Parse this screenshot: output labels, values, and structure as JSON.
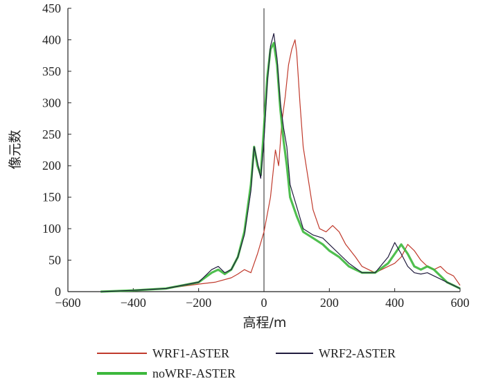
{
  "chart_data": {
    "type": "line",
    "title": "",
    "xlabel": "高程/m",
    "ylabel": "像元数",
    "xlim": [
      -600,
      600
    ],
    "ylim": [
      0,
      450
    ],
    "xticks": [
      -600,
      -400,
      -200,
      0,
      200,
      400,
      600
    ],
    "yticks": [
      0,
      50,
      100,
      150,
      200,
      250,
      300,
      350,
      400,
      450
    ],
    "xtick_labels": [
      "−600",
      "−400",
      "−200",
      "0",
      "200",
      "400",
      "600"
    ],
    "ytick_labels": [
      "0",
      "50",
      "100",
      "150",
      "200",
      "250",
      "300",
      "350",
      "400",
      "450"
    ],
    "grid": false,
    "legend_position": "bottom",
    "series": [
      {
        "name": "WRF1-ASTER",
        "color": "#c0392b",
        "x": [
          -500,
          -400,
          -300,
          -200,
          -150,
          -100,
          -80,
          -60,
          -40,
          -20,
          0,
          20,
          35,
          45,
          55,
          65,
          75,
          85,
          95,
          100,
          110,
          120,
          135,
          150,
          170,
          190,
          210,
          230,
          250,
          280,
          300,
          320,
          340,
          360,
          380,
          400,
          420,
          440,
          460,
          480,
          500,
          520,
          540,
          560,
          580,
          600
        ],
        "values": [
          0,
          2,
          5,
          12,
          15,
          22,
          28,
          35,
          30,
          60,
          95,
          150,
          225,
          200,
          270,
          310,
          360,
          385,
          400,
          380,
          300,
          230,
          180,
          130,
          100,
          95,
          105,
          95,
          75,
          55,
          40,
          35,
          30,
          35,
          40,
          45,
          55,
          75,
          65,
          50,
          40,
          35,
          40,
          30,
          25,
          10
        ]
      },
      {
        "name": "WRF2-ASTER",
        "color": "#1f1a3d",
        "x": [
          -500,
          -400,
          -300,
          -200,
          -160,
          -140,
          -120,
          -100,
          -80,
          -60,
          -40,
          -30,
          -20,
          -10,
          0,
          10,
          20,
          30,
          40,
          50,
          60,
          70,
          80,
          100,
          120,
          150,
          180,
          200,
          230,
          260,
          300,
          340,
          380,
          400,
          420,
          440,
          460,
          480,
          500,
          520,
          540,
          560,
          580,
          600
        ],
        "values": [
          0,
          2,
          5,
          15,
          35,
          40,
          30,
          35,
          55,
          90,
          160,
          230,
          205,
          180,
          240,
          330,
          390,
          410,
          370,
          300,
          260,
          230,
          170,
          135,
          100,
          90,
          85,
          75,
          60,
          45,
          30,
          30,
          55,
          78,
          60,
          40,
          30,
          28,
          30,
          25,
          20,
          15,
          10,
          5
        ]
      },
      {
        "name": "noWRF-ASTER",
        "color": "#3cb83c",
        "x": [
          -500,
          -400,
          -300,
          -200,
          -160,
          -140,
          -120,
          -100,
          -80,
          -60,
          -40,
          -30,
          -20,
          -10,
          0,
          10,
          20,
          30,
          40,
          50,
          60,
          70,
          80,
          100,
          120,
          150,
          180,
          200,
          230,
          260,
          300,
          340,
          380,
          400,
          420,
          440,
          460,
          480,
          500,
          520,
          540,
          560,
          580,
          600
        ],
        "values": [
          0,
          2,
          5,
          15,
          30,
          35,
          28,
          35,
          55,
          95,
          170,
          230,
          200,
          185,
          260,
          340,
          385,
          395,
          360,
          290,
          240,
          200,
          150,
          120,
          95,
          85,
          75,
          65,
          55,
          40,
          30,
          30,
          45,
          60,
          75,
          60,
          40,
          35,
          40,
          35,
          25,
          15,
          10,
          5
        ]
      }
    ]
  }
}
